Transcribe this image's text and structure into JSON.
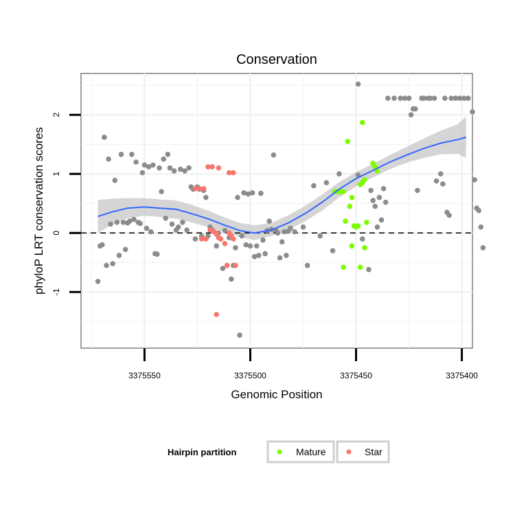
{
  "chart_data": {
    "type": "scatter",
    "title": "Conservation",
    "xlabel": "Genomic Position",
    "ylabel": "phyloP LRT conservation scores",
    "x_reversed": true,
    "xlim": [
      3375580,
      3375395
    ],
    "ylim": [
      -1.95,
      2.7
    ],
    "x_ticks": [
      {
        "value": 3375550,
        "label": "3375550"
      },
      {
        "value": 3375500,
        "label": "3375500"
      },
      {
        "value": 3375450,
        "label": "3375450"
      },
      {
        "value": 3375400,
        "label": "3375400"
      }
    ],
    "y_ticks": [
      {
        "value": -1,
        "label": "-1"
      },
      {
        "value": 0,
        "label": "0"
      },
      {
        "value": 1,
        "label": "1"
      },
      {
        "value": 2,
        "label": "2"
      }
    ],
    "reference_line": {
      "y": 0,
      "style": "dashed"
    },
    "legend": {
      "title": "Hairpin partition",
      "position": "bottom",
      "entries": [
        {
          "label": "Mature",
          "color": "#7CFC00"
        },
        {
          "label": "Star",
          "color": "#F8766D"
        }
      ]
    },
    "colors": {
      "other": "#8C8C8C",
      "Mature": "#7CFC00",
      "Star": "#F8766D",
      "smooth": "#3366FF",
      "ribbon": "#BEBEBE"
    },
    "series": [
      {
        "name": "Other",
        "points": [
          [
            3375572,
            -0.82
          ],
          [
            3375571,
            -0.22
          ],
          [
            3375570,
            -0.2
          ],
          [
            3375569,
            1.62
          ],
          [
            3375568,
            -0.55
          ],
          [
            3375567,
            1.25
          ],
          [
            3375566,
            0.15
          ],
          [
            3375565,
            -0.52
          ],
          [
            3375564,
            0.89
          ],
          [
            3375563,
            0.18
          ],
          [
            3375562,
            -0.38
          ],
          [
            3375561,
            1.33
          ],
          [
            3375560,
            0.18
          ],
          [
            3375559,
            -0.28
          ],
          [
            3375558,
            0.17
          ],
          [
            3375557,
            0.2
          ],
          [
            3375556,
            1.33
          ],
          [
            3375555,
            0.23
          ],
          [
            3375554,
            1.2
          ],
          [
            3375553,
            0.18
          ],
          [
            3375552,
            0.16
          ],
          [
            3375551,
            1.02
          ],
          [
            3375550,
            1.15
          ],
          [
            3375549,
            0.08
          ],
          [
            3375548,
            1.12
          ],
          [
            3375547,
            0.02
          ],
          [
            3375546,
            1.15
          ],
          [
            3375545,
            -0.35
          ],
          [
            3375544,
            -0.36
          ],
          [
            3375543,
            1.1
          ],
          [
            3375542,
            0.7
          ],
          [
            3375541,
            1.25
          ],
          [
            3375540,
            0.25
          ],
          [
            3375539,
            1.33
          ],
          [
            3375538,
            1.1
          ],
          [
            3375537,
            0.15
          ],
          [
            3375536,
            1.05
          ],
          [
            3375535,
            0.05
          ],
          [
            3375534,
            0.1
          ],
          [
            3375533,
            1.08
          ],
          [
            3375532,
            0.18
          ],
          [
            3375531,
            1.05
          ],
          [
            3375530,
            0.05
          ],
          [
            3375529,
            1.1
          ],
          [
            3375528,
            0.78
          ],
          [
            3375527,
            0.74
          ],
          [
            3375526,
            -0.1
          ],
          [
            3375525,
            0.78
          ],
          [
            3375524,
            0.74
          ],
          [
            3375523,
            -0.05
          ],
          [
            3375522,
            0.72
          ],
          [
            3375521,
            0.6
          ],
          [
            3375520,
            -0.05
          ],
          [
            3375519,
            0.1
          ],
          [
            3375518,
            0.05
          ],
          [
            3375517,
            0.02
          ],
          [
            3375516,
            -0.22
          ],
          [
            3375515,
            0.0
          ],
          [
            3375513,
            -0.6
          ],
          [
            3375512,
            0.04
          ],
          [
            3375511,
            -0.55
          ],
          [
            3375510,
            -0.08
          ],
          [
            3375509,
            -0.78
          ],
          [
            3375508,
            -0.55
          ],
          [
            3375507,
            -0.25
          ],
          [
            3375506,
            0.6
          ],
          [
            3375505,
            -1.73
          ],
          [
            3375504,
            -0.05
          ],
          [
            3375503,
            0.68
          ],
          [
            3375502,
            -0.2
          ],
          [
            3375501,
            0.66
          ],
          [
            3375500,
            -0.22
          ],
          [
            3375499,
            0.68
          ],
          [
            3375498,
            -0.4
          ],
          [
            3375497,
            -0.22
          ],
          [
            3375496,
            -0.38
          ],
          [
            3375495,
            0.67
          ],
          [
            3375494,
            -0.12
          ],
          [
            3375493,
            -0.35
          ],
          [
            3375492,
            0.04
          ],
          [
            3375491,
            0.2
          ],
          [
            3375490,
            0.06
          ],
          [
            3375489,
            1.32
          ],
          [
            3375488,
            0.05
          ],
          [
            3375487,
            0.0
          ],
          [
            3375486,
            -0.42
          ],
          [
            3375485,
            -0.15
          ],
          [
            3375484,
            0.02
          ],
          [
            3375483,
            -0.38
          ],
          [
            3375482,
            0.03
          ],
          [
            3375481,
            0.08
          ],
          [
            3375479,
            0.02
          ],
          [
            3375475,
            0.1
          ],
          [
            3375473,
            -0.55
          ],
          [
            3375470,
            0.8
          ],
          [
            3375467,
            -0.05
          ],
          [
            3375464,
            0.85
          ],
          [
            3375461,
            -0.3
          ],
          [
            3375458,
            1.0
          ],
          [
            3375449,
            2.52
          ],
          [
            3375449,
            0.98
          ],
          [
            3375447,
            -0.1
          ],
          [
            3375444,
            -0.62
          ],
          [
            3375443,
            0.72
          ],
          [
            3375442,
            0.55
          ],
          [
            3375441,
            0.45
          ],
          [
            3375440,
            0.1
          ],
          [
            3375439,
            0.6
          ],
          [
            3375438,
            0.22
          ],
          [
            3375437,
            0.75
          ],
          [
            3375436,
            0.52
          ],
          [
            3375435,
            2.28
          ],
          [
            3375432,
            2.28
          ],
          [
            3375429,
            2.28
          ],
          [
            3375427,
            2.28
          ],
          [
            3375425,
            2.28
          ],
          [
            3375424,
            2.0
          ],
          [
            3375423,
            2.1
          ],
          [
            3375422,
            2.1
          ],
          [
            3375421,
            0.72
          ],
          [
            3375419,
            2.28
          ],
          [
            3375418,
            2.28
          ],
          [
            3375416,
            2.28
          ],
          [
            3375415,
            2.28
          ],
          [
            3375413,
            2.28
          ],
          [
            3375412,
            0.88
          ],
          [
            3375410,
            1.0
          ],
          [
            3375409,
            0.83
          ],
          [
            3375408,
            2.28
          ],
          [
            3375407,
            0.35
          ],
          [
            3375406,
            0.3
          ],
          [
            3375405,
            2.28
          ],
          [
            3375403,
            2.28
          ],
          [
            3375401,
            2.28
          ],
          [
            3375399,
            2.28
          ],
          [
            3375397,
            2.28
          ],
          [
            3375395,
            2.05
          ],
          [
            3375394,
            0.9
          ],
          [
            3375393,
            0.42
          ],
          [
            3375392,
            0.38
          ],
          [
            3375391,
            0.1
          ],
          [
            3375390,
            -0.25
          ]
        ]
      },
      {
        "name": "Mature",
        "points": [
          [
            3375442,
            1.18
          ],
          [
            3375441,
            1.12
          ],
          [
            3375440,
            1.05
          ],
          [
            3375446,
            0.9
          ],
          [
            3375447,
            0.85
          ],
          [
            3375448,
            0.82
          ],
          [
            3375447,
            1.87
          ],
          [
            3375454,
            1.55
          ],
          [
            3375456,
            0.7
          ],
          [
            3375457,
            0.7
          ],
          [
            3375458,
            0.7
          ],
          [
            3375459,
            0.7
          ],
          [
            3375460,
            0.7
          ],
          [
            3375452,
            0.6
          ],
          [
            3375451,
            0.12
          ],
          [
            3375450,
            0.1
          ],
          [
            3375449,
            0.12
          ],
          [
            3375453,
            0.45
          ],
          [
            3375455,
            0.2
          ],
          [
            3375445,
            0.18
          ],
          [
            3375452,
            -0.22
          ],
          [
            3375448,
            -0.58
          ],
          [
            3375456,
            -0.58
          ],
          [
            3375446,
            -0.25
          ]
        ]
      },
      {
        "name": "Star",
        "points": [
          [
            3375520,
            1.12
          ],
          [
            3375518,
            1.12
          ],
          [
            3375515,
            1.1
          ],
          [
            3375510,
            1.02
          ],
          [
            3375508,
            1.02
          ],
          [
            3375526,
            0.75
          ],
          [
            3375524,
            0.75
          ],
          [
            3375522,
            0.75
          ],
          [
            3375519,
            0.05
          ],
          [
            3375518,
            0.04
          ],
          [
            3375517,
            0.02
          ],
          [
            3375516,
            -0.02
          ],
          [
            3375515,
            -0.08
          ],
          [
            3375514,
            -0.1
          ],
          [
            3375523,
            -0.1
          ],
          [
            3375521,
            -0.1
          ],
          [
            3375512,
            -0.18
          ],
          [
            3375510,
            0.0
          ],
          [
            3375509,
            -0.05
          ],
          [
            3375508,
            -0.1
          ],
          [
            3375511,
            -0.55
          ],
          [
            3375507,
            -0.55
          ],
          [
            3375516,
            -1.38
          ]
        ]
      }
    ],
    "smooth_line": [
      {
        "x": 3375572,
        "y": 0.28,
        "lo": 0.0,
        "hi": 0.56
      },
      {
        "x": 3375565,
        "y": 0.36,
        "lo": 0.15,
        "hi": 0.58
      },
      {
        "x": 3375558,
        "y": 0.42,
        "lo": 0.25,
        "hi": 0.59
      },
      {
        "x": 3375550,
        "y": 0.44,
        "lo": 0.29,
        "hi": 0.59
      },
      {
        "x": 3375543,
        "y": 0.42,
        "lo": 0.27,
        "hi": 0.57
      },
      {
        "x": 3375535,
        "y": 0.4,
        "lo": 0.24,
        "hi": 0.55
      },
      {
        "x": 3375528,
        "y": 0.33,
        "lo": 0.18,
        "hi": 0.48
      },
      {
        "x": 3375520,
        "y": 0.24,
        "lo": 0.1,
        "hi": 0.38
      },
      {
        "x": 3375512,
        "y": 0.13,
        "lo": 0.02,
        "hi": 0.26
      },
      {
        "x": 3375505,
        "y": 0.04,
        "lo": -0.07,
        "hi": 0.17
      },
      {
        "x": 3375498,
        "y": 0.0,
        "lo": -0.12,
        "hi": 0.13
      },
      {
        "x": 3375490,
        "y": 0.05,
        "lo": -0.05,
        "hi": 0.17
      },
      {
        "x": 3375482,
        "y": 0.17,
        "lo": 0.05,
        "hi": 0.3
      },
      {
        "x": 3375474,
        "y": 0.33,
        "lo": 0.2,
        "hi": 0.46
      },
      {
        "x": 3375466,
        "y": 0.52,
        "lo": 0.38,
        "hi": 0.65
      },
      {
        "x": 3375458,
        "y": 0.74,
        "lo": 0.6,
        "hi": 0.86
      },
      {
        "x": 3375450,
        "y": 0.92,
        "lo": 0.79,
        "hi": 1.03
      },
      {
        "x": 3375442,
        "y": 1.06,
        "lo": 0.94,
        "hi": 1.17
      },
      {
        "x": 3375434,
        "y": 1.2,
        "lo": 1.08,
        "hi": 1.32
      },
      {
        "x": 3375426,
        "y": 1.32,
        "lo": 1.19,
        "hi": 1.46
      },
      {
        "x": 3375418,
        "y": 1.43,
        "lo": 1.27,
        "hi": 1.6
      },
      {
        "x": 3375410,
        "y": 1.52,
        "lo": 1.33,
        "hi": 1.73
      },
      {
        "x": 3375402,
        "y": 1.58,
        "lo": 1.34,
        "hi": 1.84
      },
      {
        "x": 3375398,
        "y": 1.62,
        "lo": 1.27,
        "hi": 1.97
      }
    ]
  }
}
